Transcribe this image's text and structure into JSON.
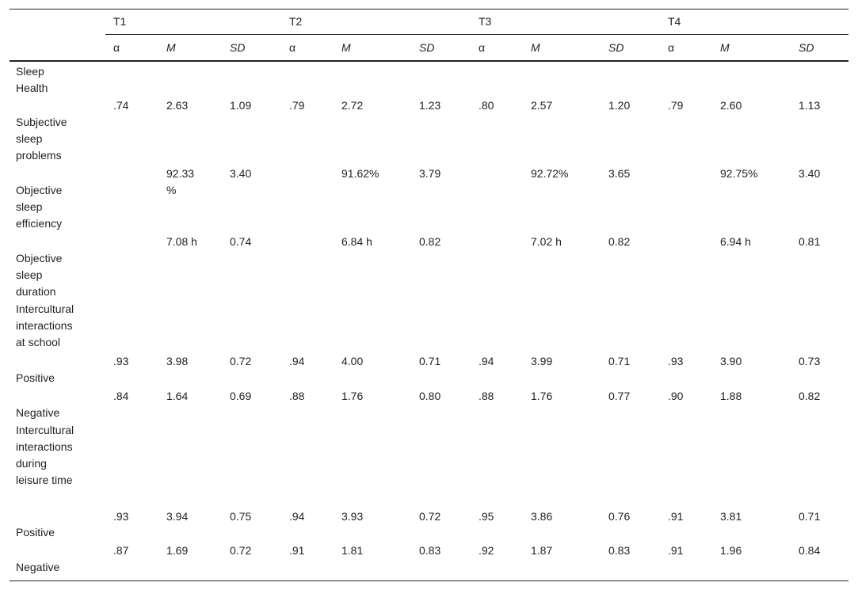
{
  "table": {
    "groups": [
      "T1",
      "T2",
      "T3",
      "T4"
    ],
    "subheaders": [
      "α",
      "M",
      "SD",
      "α",
      "M",
      "SD",
      "α",
      "M",
      "SD",
      "α",
      "M",
      "SD"
    ],
    "rows": [
      {
        "label": "Sleep Health",
        "values": null
      },
      {
        "label": "Subjective sleep problems",
        "values": [
          ".74",
          "2.63",
          "1.09",
          ".79",
          "2.72",
          "1.23",
          ".80",
          "2.57",
          "1.20",
          ".79",
          "2.60",
          "1.13"
        ]
      },
      {
        "label": "Objective sleep efficiency",
        "values": [
          null,
          "92.33 %",
          "3.40",
          null,
          "91.62%",
          "3.79",
          null,
          "92.72%",
          "3.65",
          null,
          "92.75%",
          "3.40"
        ]
      },
      {
        "label": "Objective sleep duration",
        "values": [
          null,
          "7.08 h",
          "0.74",
          null,
          "6.84 h",
          "0.82",
          null,
          "7.02 h",
          "0.82",
          null,
          "6.94 h",
          "0.81"
        ]
      },
      {
        "label": "Intercultural interactions at school",
        "values": null
      },
      {
        "label": "Positive",
        "values": [
          ".93",
          "3.98",
          "0.72",
          ".94",
          "4.00",
          "0.71",
          ".94",
          "3.99",
          "0.71",
          ".93",
          "3.90",
          "0.73"
        ]
      },
      {
        "label": "Negative",
        "values": [
          ".84",
          "1.64",
          "0.69",
          ".88",
          "1.76",
          "0.80",
          ".88",
          "1.76",
          "0.77",
          ".90",
          "1.88",
          "0.82"
        ]
      },
      {
        "label": "Intercultural interactions during leisure time",
        "values": null
      },
      {
        "label": "Positive",
        "values": [
          ".93",
          "3.94",
          "0.75",
          ".94",
          "3.93",
          "0.72",
          ".95",
          "3.86",
          "0.76",
          ".91",
          "3.81",
          "0.71"
        ]
      },
      {
        "label": "Negative",
        "values": [
          ".87",
          "1.69",
          "0.72",
          ".91",
          "1.81",
          "0.83",
          ".92",
          "1.87",
          "0.83",
          ".91",
          "1.96",
          "0.84"
        ]
      }
    ]
  }
}
